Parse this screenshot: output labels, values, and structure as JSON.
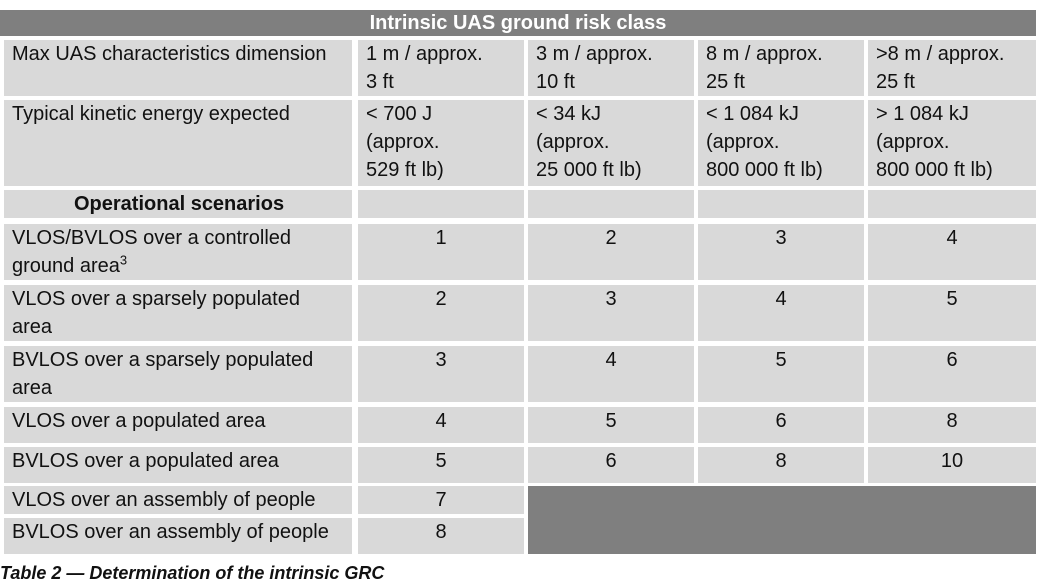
{
  "table": {
    "header": "Intrinsic UAS ground risk class",
    "row_dimension": {
      "label": "Max UAS characteristics dimension",
      "values": [
        "1 m / approx.\n3 ft",
        "3 m / approx.\n10 ft",
        "8 m / approx.\n25 ft",
        ">8 m / approx.\n25 ft"
      ]
    },
    "row_energy": {
      "label": "Typical kinetic energy expected",
      "values": [
        "< 700 J\n(approx.\n529 ft lb)",
        "< 34 kJ\n(approx.\n25 000 ft lb)",
        "< 1 084 kJ\n(approx.\n800 000 ft lb)",
        "> 1 084 kJ\n(approx.\n800 000 ft lb)"
      ]
    },
    "scenarios_heading": "Operational scenarios",
    "scenarios": [
      {
        "label": "VLOS/BVLOS over a controlled\nground area",
        "sup": "3",
        "values": [
          "1",
          "2",
          "3",
          "4"
        ]
      },
      {
        "label": "VLOS over a sparsely populated\narea",
        "sup": "",
        "values": [
          "2",
          "3",
          "4",
          "5"
        ]
      },
      {
        "label": "BVLOS over a sparsely populated\narea",
        "sup": "",
        "values": [
          "3",
          "4",
          "5",
          "6"
        ]
      },
      {
        "label": "VLOS over a populated area",
        "sup": "",
        "values": [
          "4",
          "5",
          "6",
          "8"
        ]
      },
      {
        "label": "BVLOS over a populated area",
        "sup": "",
        "values": [
          "5",
          "6",
          "8",
          "10"
        ]
      },
      {
        "label": "VLOS over an assembly of people",
        "sup": "",
        "values": [
          "7"
        ]
      },
      {
        "label": "BVLOS over an assembly of people",
        "sup": "",
        "values": [
          "8"
        ]
      }
    ]
  },
  "caption": "Table 2 — Determination of the intrinsic GRC",
  "colors": {
    "cell": "#d9d9d9",
    "header": "#7f7f7f",
    "text": "#111111"
  }
}
